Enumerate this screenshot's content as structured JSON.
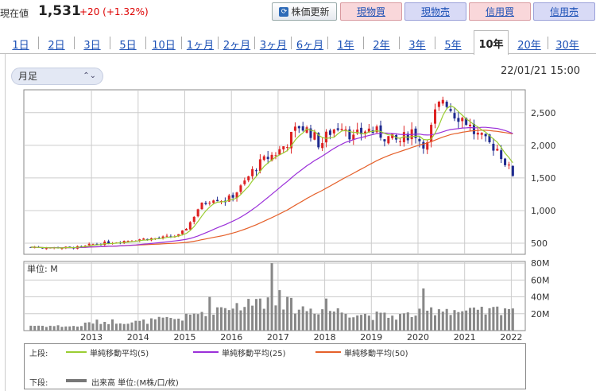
{
  "header": {
    "price_label": "現在値",
    "price": "1,531",
    "change": "+20 (+1.32%)",
    "refresh_label": "株価更新",
    "buttons": [
      "現物買",
      "現物売",
      "信用買",
      "信用売"
    ]
  },
  "tabs": [
    "1日",
    "2日",
    "3日",
    "5日",
    "10日",
    "1ヶ月",
    "2ヶ月",
    "3ヶ月",
    "6ヶ月",
    "1年",
    "2年",
    "3年",
    "5年",
    "10年",
    "20年",
    "30年"
  ],
  "active_tab": "10年",
  "controls": {
    "period_select": "月足",
    "timestamp": "22/01/21 15:00"
  },
  "colors": {
    "up": "#dd2222",
    "down": "#1f2b8f",
    "ma5": "#9acd32",
    "ma25": "#9b30d9",
    "ma50": "#e5602a",
    "volume": "#888888"
  },
  "legend": {
    "upper_label": "上段:",
    "ma5": "単純移動平均(5)",
    "ma25": "単純移動平均(25)",
    "ma50": "単純移動平均(50)",
    "lower_label": "下段:",
    "volume": "出来高 単位:(M株/口/枚)"
  },
  "chart_data": [
    {
      "type": "candlestick",
      "x_ticks": [
        "2013",
        "2014",
        "2015",
        "2016",
        "2017",
        "2018",
        "2019",
        "2020",
        "2021",
        "2022"
      ],
      "y_ticks": [
        "500",
        "1,000",
        "1,500",
        "2,000",
        "2,500"
      ],
      "ylim": [
        330,
        2850
      ],
      "x_range": [
        2011.55,
        2022.3
      ],
      "grid": true,
      "anchors": [
        [
          2011.7,
          440
        ],
        [
          2012.4,
          430
        ],
        [
          2012.8,
          440
        ],
        [
          2013.0,
          480
        ],
        [
          2013.5,
          520
        ],
        [
          2014.0,
          560
        ],
        [
          2014.5,
          580
        ],
        [
          2014.9,
          620
        ],
        [
          2015.1,
          800
        ],
        [
          2015.3,
          1050
        ],
        [
          2015.6,
          1200
        ],
        [
          2015.9,
          1150
        ],
        [
          2016.2,
          1350
        ],
        [
          2016.5,
          1650
        ],
        [
          2016.75,
          1800
        ],
        [
          2017.0,
          1900
        ],
        [
          2017.2,
          2050
        ],
        [
          2017.45,
          2300
        ],
        [
          2017.7,
          2200
        ],
        [
          2017.9,
          2000
        ],
        [
          2018.1,
          2200
        ],
        [
          2018.4,
          2350
        ],
        [
          2018.6,
          2100
        ],
        [
          2018.9,
          2250
        ],
        [
          2019.1,
          2200
        ],
        [
          2019.4,
          2100
        ],
        [
          2019.6,
          2050
        ],
        [
          2019.9,
          2250
        ],
        [
          2020.0,
          2100
        ],
        [
          2020.2,
          2000
        ],
        [
          2020.35,
          2450
        ],
        [
          2020.55,
          2750
        ],
        [
          2020.75,
          2500
        ],
        [
          2021.0,
          2400
        ],
        [
          2021.2,
          2200
        ],
        [
          2021.45,
          2050
        ],
        [
          2021.7,
          1950
        ],
        [
          2021.9,
          1700
        ],
        [
          2022.05,
          1531
        ]
      ],
      "last": {
        "x": 2022.05,
        "y": 1531
      }
    },
    {
      "type": "bar",
      "label": "単位: M",
      "y_ticks": [
        "20M",
        "40M",
        "60M",
        "80M"
      ],
      "ylim": [
        0,
        82
      ],
      "volume_anchors": [
        [
          2011.7,
          6
        ],
        [
          2012.7,
          5
        ],
        [
          2013.0,
          10
        ],
        [
          2013.5,
          11
        ],
        [
          2014.0,
          10
        ],
        [
          2014.5,
          13
        ],
        [
          2015.0,
          15
        ],
        [
          2015.5,
          25
        ],
        [
          2016.0,
          30
        ],
        [
          2016.5,
          32
        ],
        [
          2016.85,
          38
        ],
        [
          2017.0,
          35
        ],
        [
          2017.5,
          26
        ],
        [
          2018.0,
          25
        ],
        [
          2018.5,
          22
        ],
        [
          2019.0,
          18
        ],
        [
          2019.5,
          17
        ],
        [
          2020.0,
          20
        ],
        [
          2020.5,
          27
        ],
        [
          2021.0,
          22
        ],
        [
          2021.5,
          22
        ],
        [
          2021.9,
          28
        ]
      ],
      "spikes": [
        [
          2016.88,
          80
        ],
        [
          2017.03,
          48
        ],
        [
          2020.12,
          50
        ],
        [
          2018.0,
          38
        ],
        [
          2015.53,
          40
        ],
        [
          2016.6,
          38
        ]
      ]
    }
  ]
}
